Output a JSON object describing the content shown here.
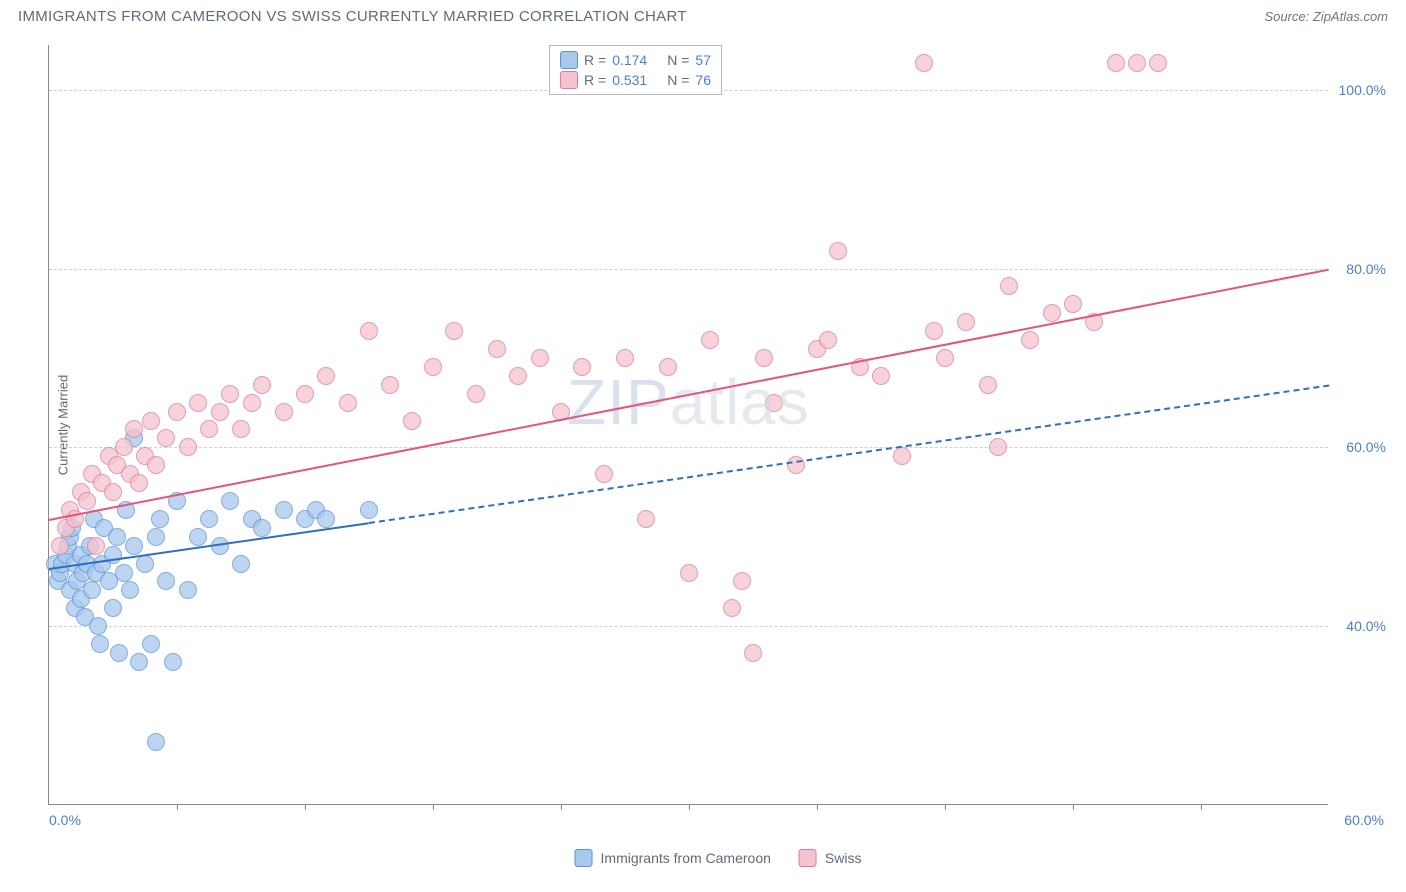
{
  "header": {
    "title": "IMMIGRANTS FROM CAMEROON VS SWISS CURRENTLY MARRIED CORRELATION CHART",
    "source": "Source: ZipAtlas.com"
  },
  "chart": {
    "type": "scatter",
    "ylabel": "Currently Married",
    "xlim": [
      0,
      60
    ],
    "ylim": [
      20,
      105
    ],
    "xtick_labels": [
      "0.0%",
      "60.0%"
    ],
    "xtick_positions": [
      0,
      60
    ],
    "xtick_minor": [
      6,
      12,
      18,
      24,
      30,
      36,
      42,
      48,
      54
    ],
    "ytick_labels": [
      "40.0%",
      "60.0%",
      "80.0%",
      "100.0%"
    ],
    "ytick_positions": [
      40,
      60,
      80,
      100
    ],
    "grid_color": "#d0d0d0",
    "background_color": "#ffffff",
    "axis_color": "#888888",
    "label_color": "#5f6b7a",
    "tick_label_color": "#4b7fd1",
    "point_radius": 9,
    "series": [
      {
        "name": "Immigrants from Cameroon",
        "fill": "#a8c8ec",
        "stroke": "#5a93d6",
        "line_color": "#2e6fc0",
        "r": "0.174",
        "n": "57",
        "regression": {
          "x1": 0,
          "y1": 46.5,
          "x2": 60,
          "y2": 67,
          "dash_after_x": 15
        },
        "points": [
          [
            0.3,
            47
          ],
          [
            0.4,
            45
          ],
          [
            0.5,
            46
          ],
          [
            0.6,
            47
          ],
          [
            0.8,
            48
          ],
          [
            0.9,
            49
          ],
          [
            1.0,
            50
          ],
          [
            1.0,
            44
          ],
          [
            1.1,
            51
          ],
          [
            1.2,
            47
          ],
          [
            1.2,
            42
          ],
          [
            1.3,
            45
          ],
          [
            1.5,
            48
          ],
          [
            1.5,
            43
          ],
          [
            1.6,
            46
          ],
          [
            1.7,
            41
          ],
          [
            1.8,
            47
          ],
          [
            1.9,
            49
          ],
          [
            2.0,
            44
          ],
          [
            2.1,
            52
          ],
          [
            2.2,
            46
          ],
          [
            2.3,
            40
          ],
          [
            2.4,
            38
          ],
          [
            2.5,
            47
          ],
          [
            2.6,
            51
          ],
          [
            2.8,
            45
          ],
          [
            3.0,
            42
          ],
          [
            3.0,
            48
          ],
          [
            3.2,
            50
          ],
          [
            3.3,
            37
          ],
          [
            3.5,
            46
          ],
          [
            3.6,
            53
          ],
          [
            3.8,
            44
          ],
          [
            4.0,
            49
          ],
          [
            4.0,
            61
          ],
          [
            4.2,
            36
          ],
          [
            4.5,
            47
          ],
          [
            4.8,
            38
          ],
          [
            5.0,
            50
          ],
          [
            5.2,
            52
          ],
          [
            5.5,
            45
          ],
          [
            5.8,
            36
          ],
          [
            6.0,
            54
          ],
          [
            6.5,
            44
          ],
          [
            7.0,
            50
          ],
          [
            7.5,
            52
          ],
          [
            8.0,
            49
          ],
          [
            8.5,
            54
          ],
          [
            9.0,
            47
          ],
          [
            9.5,
            52
          ],
          [
            10.0,
            51
          ],
          [
            11.0,
            53
          ],
          [
            12.0,
            52
          ],
          [
            12.5,
            53
          ],
          [
            13.0,
            52
          ],
          [
            5.0,
            27
          ],
          [
            15.0,
            53
          ]
        ]
      },
      {
        "name": "Swiss",
        "fill": "#f5c3cf",
        "stroke": "#e07a96",
        "line_color": "#e2557c",
        "r": "0.531",
        "n": "76",
        "regression": {
          "x1": 0,
          "y1": 52,
          "x2": 60,
          "y2": 80,
          "dash_after_x": 60
        },
        "points": [
          [
            0.5,
            49
          ],
          [
            0.8,
            51
          ],
          [
            1.0,
            53
          ],
          [
            1.2,
            52
          ],
          [
            1.5,
            55
          ],
          [
            1.8,
            54
          ],
          [
            2.0,
            57
          ],
          [
            2.2,
            49
          ],
          [
            2.5,
            56
          ],
          [
            2.8,
            59
          ],
          [
            3.0,
            55
          ],
          [
            3.2,
            58
          ],
          [
            3.5,
            60
          ],
          [
            3.8,
            57
          ],
          [
            4.0,
            62
          ],
          [
            4.2,
            56
          ],
          [
            4.5,
            59
          ],
          [
            4.8,
            63
          ],
          [
            5.0,
            58
          ],
          [
            5.5,
            61
          ],
          [
            6.0,
            64
          ],
          [
            6.5,
            60
          ],
          [
            7.0,
            65
          ],
          [
            7.5,
            62
          ],
          [
            8.0,
            64
          ],
          [
            8.5,
            66
          ],
          [
            9.0,
            62
          ],
          [
            9.5,
            65
          ],
          [
            10.0,
            67
          ],
          [
            11.0,
            64
          ],
          [
            12.0,
            66
          ],
          [
            13.0,
            68
          ],
          [
            14.0,
            65
          ],
          [
            15.0,
            73
          ],
          [
            16.0,
            67
          ],
          [
            17.0,
            63
          ],
          [
            18.0,
            69
          ],
          [
            19.0,
            73
          ],
          [
            20.0,
            66
          ],
          [
            21.0,
            71
          ],
          [
            22.0,
            68
          ],
          [
            23.0,
            70
          ],
          [
            24.0,
            64
          ],
          [
            25.0,
            69
          ],
          [
            26.0,
            57
          ],
          [
            27.0,
            70
          ],
          [
            28.0,
            52
          ],
          [
            29.0,
            69
          ],
          [
            30.0,
            46
          ],
          [
            31.0,
            72
          ],
          [
            32.0,
            42
          ],
          [
            32.5,
            45
          ],
          [
            33.0,
            37
          ],
          [
            33.5,
            70
          ],
          [
            34.0,
            65
          ],
          [
            35.0,
            58
          ],
          [
            36.0,
            71
          ],
          [
            37.0,
            82
          ],
          [
            38.0,
            69
          ],
          [
            39.0,
            68
          ],
          [
            40.0,
            59
          ],
          [
            41.0,
            103
          ],
          [
            42.0,
            70
          ],
          [
            43.0,
            74
          ],
          [
            44.0,
            67
          ],
          [
            45.0,
            78
          ],
          [
            46.0,
            72
          ],
          [
            47.0,
            75
          ],
          [
            48.0,
            76
          ],
          [
            49.0,
            74
          ],
          [
            50.0,
            103
          ],
          [
            51.0,
            103
          ],
          [
            52.0,
            103
          ],
          [
            41.5,
            73
          ],
          [
            44.5,
            60
          ],
          [
            36.5,
            72
          ]
        ]
      }
    ],
    "legend_top": {
      "r_label": "R =",
      "n_label": "N ="
    },
    "watermark": "ZIPatlas"
  }
}
